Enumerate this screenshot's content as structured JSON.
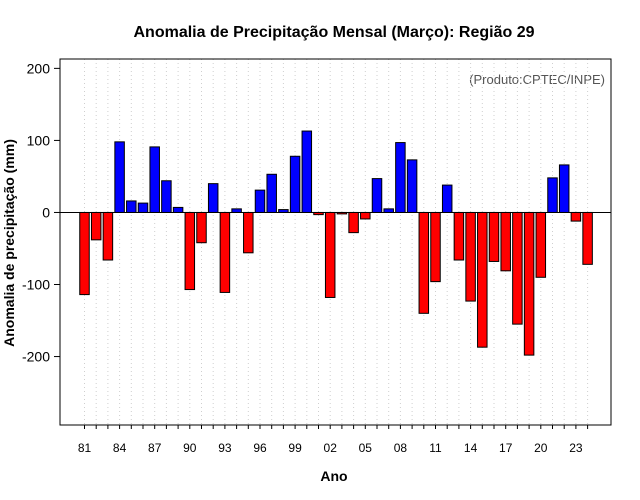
{
  "chart_data": {
    "type": "bar",
    "title": "Anomalia de Precipitação Mensal (Março): Região 29",
    "xlabel": "Ano",
    "ylabel": "Anomalia de precipitação (mm)",
    "credit": "(Produto:CPTEC/INPE)",
    "ylim": [
      -295,
      213
    ],
    "yticks": [
      -200,
      -100,
      0,
      100,
      200
    ],
    "grid": "vertical dotted",
    "positive_color": "#0000ff",
    "negative_color": "#ff0000",
    "categories": [
      "81",
      "82",
      "83",
      "84",
      "85",
      "86",
      "87",
      "88",
      "89",
      "90",
      "91",
      "92",
      "93",
      "94",
      "95",
      "96",
      "97",
      "98",
      "99",
      "00",
      "01",
      "02",
      "03",
      "04",
      "05",
      "06",
      "07",
      "08",
      "09",
      "10",
      "11",
      "12",
      "13",
      "14",
      "15",
      "16",
      "17",
      "18",
      "19",
      "20",
      "21",
      "22",
      "23",
      "24"
    ],
    "xtick_labels": [
      "81",
      "84",
      "87",
      "90",
      "93",
      "96",
      "99",
      "02",
      "05",
      "08",
      "11",
      "14",
      "17",
      "20",
      "23"
    ],
    "values": [
      -114,
      -38,
      -66,
      98,
      16,
      13,
      91,
      44,
      7,
      -107,
      -42,
      40,
      -111,
      5,
      -56,
      31,
      53,
      4,
      78,
      113,
      -3,
      -118,
      -2,
      -28,
      -9,
      47,
      5,
      97,
      73,
      -140,
      -96,
      38,
      -66,
      -123,
      -187,
      -68,
      -81,
      -155,
      -198,
      -90,
      48,
      66,
      -12,
      -72
    ]
  }
}
